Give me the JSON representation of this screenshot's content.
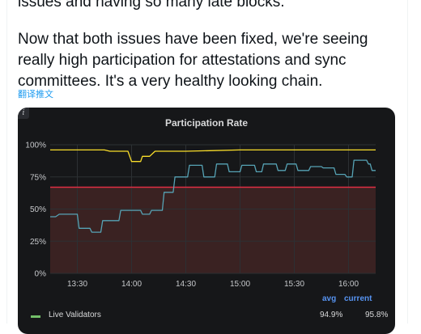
{
  "tweet": {
    "line_top": "issues and having so many late blocks.",
    "paragraph": "Now that both issues have been fixed, we're seeing really high participation for attestations and sync committees. It's a very healthy looking chain.",
    "translate_link": "翻译推文"
  },
  "panel": {
    "info_icon": "i",
    "title": "Participation Rate",
    "legend": {
      "avg_header": "avg",
      "current_header": "current",
      "rows": [
        {
          "label": "Live Validators",
          "avg": "94.9%",
          "current": "95.8%",
          "color": "#73bf69"
        }
      ]
    }
  },
  "chart_data": {
    "type": "line",
    "title": "Participation Rate",
    "y_ticks": [
      "0%",
      "25%",
      "50%",
      "75%",
      "100%"
    ],
    "x_ticks": [
      "13:30",
      "14:00",
      "14:30",
      "15:00",
      "15:30",
      "16:00"
    ],
    "ylim": [
      0,
      100
    ],
    "grid": true,
    "threshold": {
      "value": 67,
      "color": "#e02f44"
    },
    "series": [
      {
        "color": "#fade2a",
        "points": [
          [
            "13:15",
            96
          ],
          [
            "13:45",
            96
          ],
          [
            "13:48",
            95
          ],
          [
            "13:58",
            95
          ],
          [
            "14:00",
            87
          ],
          [
            "14:05",
            87
          ],
          [
            "14:06",
            91
          ],
          [
            "14:10",
            91
          ],
          [
            "14:13",
            95
          ],
          [
            "14:30",
            95
          ],
          [
            "15:00",
            96
          ],
          [
            "15:30",
            96
          ],
          [
            "16:00",
            96
          ],
          [
            "16:15",
            96
          ]
        ]
      },
      {
        "color": "#56a3b5",
        "points": [
          [
            "13:15",
            44
          ],
          [
            "13:18",
            44
          ],
          [
            "13:20",
            46
          ],
          [
            "13:30",
            46
          ],
          [
            "13:31",
            35
          ],
          [
            "13:37",
            35
          ],
          [
            "13:38",
            32
          ],
          [
            "13:43",
            32
          ],
          [
            "13:44",
            41
          ],
          [
            "13:53",
            41
          ],
          [
            "13:54",
            49
          ],
          [
            "14:05",
            49
          ],
          [
            "14:06",
            46
          ],
          [
            "14:10",
            46
          ],
          [
            "14:11",
            49
          ],
          [
            "14:17",
            49
          ],
          [
            "14:18",
            63
          ],
          [
            "14:23",
            63
          ],
          [
            "14:24",
            75
          ],
          [
            "14:31",
            75
          ],
          [
            "14:32",
            84
          ],
          [
            "14:39",
            84
          ],
          [
            "14:40",
            75
          ],
          [
            "14:46",
            75
          ],
          [
            "14:47",
            85
          ],
          [
            "14:53",
            85
          ],
          [
            "14:54",
            79
          ],
          [
            "15:00",
            79
          ],
          [
            "15:01",
            84
          ],
          [
            "15:08",
            84
          ],
          [
            "15:09",
            79
          ],
          [
            "15:12",
            79
          ],
          [
            "15:13",
            85
          ],
          [
            "15:20",
            85
          ],
          [
            "15:21",
            80
          ],
          [
            "15:25",
            80
          ],
          [
            "15:26",
            85
          ],
          [
            "15:31",
            85
          ],
          [
            "15:32",
            80
          ],
          [
            "15:38",
            80
          ],
          [
            "15:39",
            83
          ],
          [
            "15:45",
            83
          ],
          [
            "15:46",
            82
          ],
          [
            "15:52",
            82
          ],
          [
            "15:53",
            77
          ],
          [
            "15:58",
            77
          ],
          [
            "15:59",
            75
          ],
          [
            "16:02",
            75
          ],
          [
            "16:03",
            88
          ],
          [
            "16:10",
            88
          ],
          [
            "16:11",
            85
          ],
          [
            "16:12",
            85
          ],
          [
            "16:13",
            80
          ],
          [
            "16:15",
            80
          ]
        ]
      }
    ]
  }
}
